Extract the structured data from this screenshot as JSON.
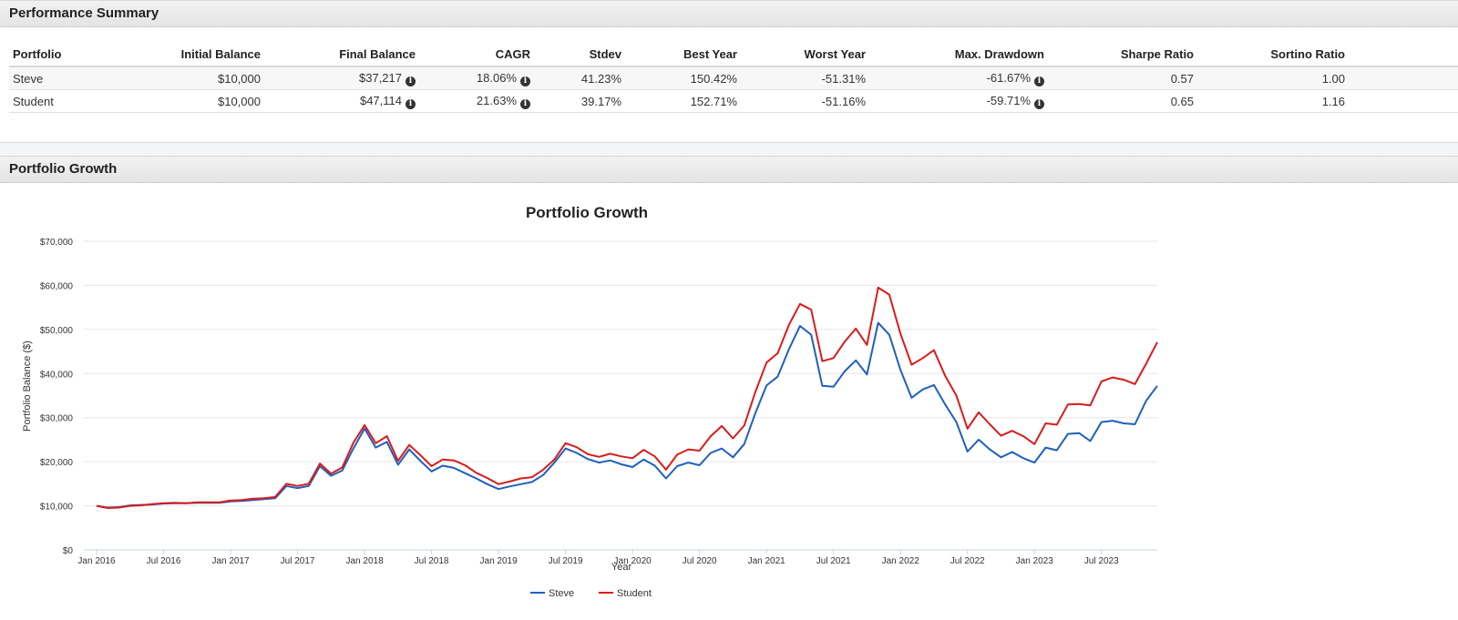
{
  "summary": {
    "header": "Performance Summary",
    "columns": [
      "Portfolio",
      "Initial Balance",
      "Final Balance",
      "CAGR",
      "Stdev",
      "Best Year",
      "Worst Year",
      "Max. Drawdown",
      "Sharpe Ratio",
      "Sortino Ratio"
    ],
    "rows": [
      {
        "portfolio": "Steve",
        "initial": "$10,000",
        "final": "$37,217",
        "cagr": "18.06%",
        "stdev": "41.23%",
        "best": "150.42%",
        "worst": "-51.31%",
        "drawdown": "-61.67%",
        "sharpe": "0.57",
        "sortino": "1.00"
      },
      {
        "portfolio": "Student",
        "initial": "$10,000",
        "final": "$47,114",
        "cagr": "21.63%",
        "stdev": "39.17%",
        "best": "152.71%",
        "worst": "-51.16%",
        "drawdown": "-59.71%",
        "sharpe": "0.65",
        "sortino": "1.16"
      }
    ]
  },
  "growth": {
    "header": "Portfolio Growth"
  },
  "chart_data": {
    "type": "line",
    "title": "Portfolio Growth",
    "xlabel": "Year",
    "ylabel": "Portfolio Balance ($)",
    "ylim": [
      0,
      70000
    ],
    "y_ticks": [
      "$0",
      "$10,000",
      "$20,000",
      "$30,000",
      "$40,000",
      "$50,000",
      "$60,000",
      "$70,000"
    ],
    "x_ticks": [
      "Jan 2016",
      "Jul 2016",
      "Jan 2017",
      "Jul 2017",
      "Jan 2018",
      "Jul 2018",
      "Jan 2019",
      "Jul 2019",
      "Jan 2020",
      "Jul 2020",
      "Jan 2021",
      "Jul 2021",
      "Jan 2022",
      "Jul 2022",
      "Jan 2023",
      "Jul 2023"
    ],
    "x_start": "Jan 2016",
    "x_end": "Dec 2023",
    "grid": true,
    "legend": "bottom",
    "series": [
      {
        "name": "Steve",
        "color": "#1f5fbf",
        "values": [
          10000,
          9600,
          9700,
          10100,
          10200,
          10300,
          10500,
          10600,
          10600,
          10700,
          10700,
          10700,
          11000,
          11100,
          11300,
          11500,
          11700,
          14500,
          14000,
          14500,
          19000,
          16800,
          18000,
          23000,
          27500,
          23200,
          24500,
          19300,
          22800,
          20200,
          17800,
          19100,
          18600,
          17400,
          16200,
          14900,
          13800,
          14400,
          14900,
          15400,
          17000,
          19800,
          23000,
          22000,
          20600,
          19800,
          20300,
          19400,
          18800,
          20500,
          19100,
          16200,
          19000,
          19800,
          19200,
          22000,
          23000,
          21000,
          24000,
          31000,
          37300,
          39300,
          45500,
          50800,
          48800,
          37200,
          37000,
          40500,
          43000,
          39800,
          51500,
          48800,
          40800,
          34500,
          36400,
          37400,
          33000,
          29000,
          22300,
          25000,
          22800,
          21000,
          22200,
          20800,
          19800,
          23200,
          22600,
          26300,
          26500,
          24700,
          29000,
          29300,
          28700,
          28500,
          33800,
          37217
        ]
      },
      {
        "name": "Student",
        "color": "#d91c1c",
        "values": [
          10000,
          9500,
          9600,
          10000,
          10100,
          10400,
          10600,
          10700,
          10600,
          10800,
          10800,
          10800,
          11200,
          11300,
          11600,
          11700,
          12000,
          15000,
          14500,
          15000,
          19600,
          17300,
          18700,
          24300,
          28300,
          24200,
          25800,
          20200,
          23800,
          21500,
          19000,
          20500,
          20300,
          19200,
          17500,
          16300,
          14900,
          15500,
          16200,
          16500,
          18200,
          20500,
          24200,
          23300,
          21700,
          21100,
          21800,
          21200,
          20800,
          22700,
          21200,
          18200,
          21600,
          22800,
          22500,
          25800,
          28100,
          25300,
          28200,
          35800,
          42500,
          44600,
          51000,
          55800,
          54500,
          42800,
          43500,
          47200,
          50200,
          46500,
          59500,
          57900,
          49000,
          42000,
          43500,
          45300,
          39500,
          35000,
          27500,
          31200,
          28500,
          25900,
          27000,
          25800,
          24000,
          28700,
          28400,
          33000,
          33100,
          32800,
          38200,
          39100,
          38600,
          37600,
          42200,
          47114
        ]
      }
    ]
  }
}
